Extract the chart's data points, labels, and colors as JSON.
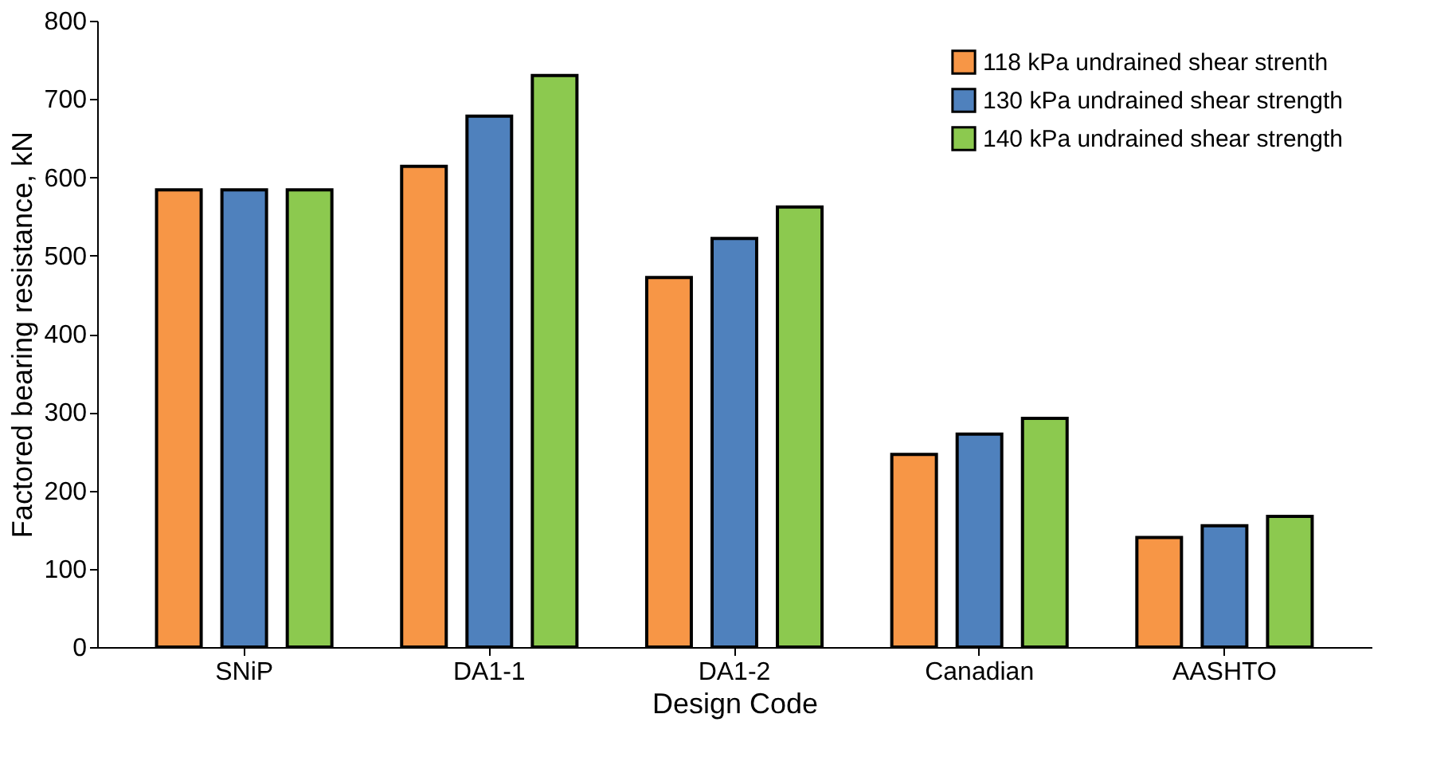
{
  "chart_data": {
    "type": "bar",
    "categories": [
      "SNiP",
      "DA1-1",
      "DA1-2",
      "Canadian",
      "AASHTO"
    ],
    "xlabel": "Design Code",
    "ylabel": "Factored bearing resistance, kN",
    "ylim": [
      0,
      800
    ],
    "yticks": [
      0,
      100,
      200,
      300,
      400,
      500,
      600,
      700,
      800
    ],
    "grid": false,
    "legend": "top right",
    "series": [
      {
        "name": "118 kPa undrained shear strenth",
        "color": "#f79646",
        "values": [
          584,
          614,
          472,
          246,
          140
        ]
      },
      {
        "name": "130 kPa undrained shear strength",
        "color": "#4f81bd",
        "values": [
          584,
          678,
          522,
          272,
          155
        ]
      },
      {
        "name": "140 kPa undrained shear strength",
        "color": "#8cc94f",
        "values": [
          584,
          730,
          562,
          292,
          167
        ]
      }
    ]
  }
}
